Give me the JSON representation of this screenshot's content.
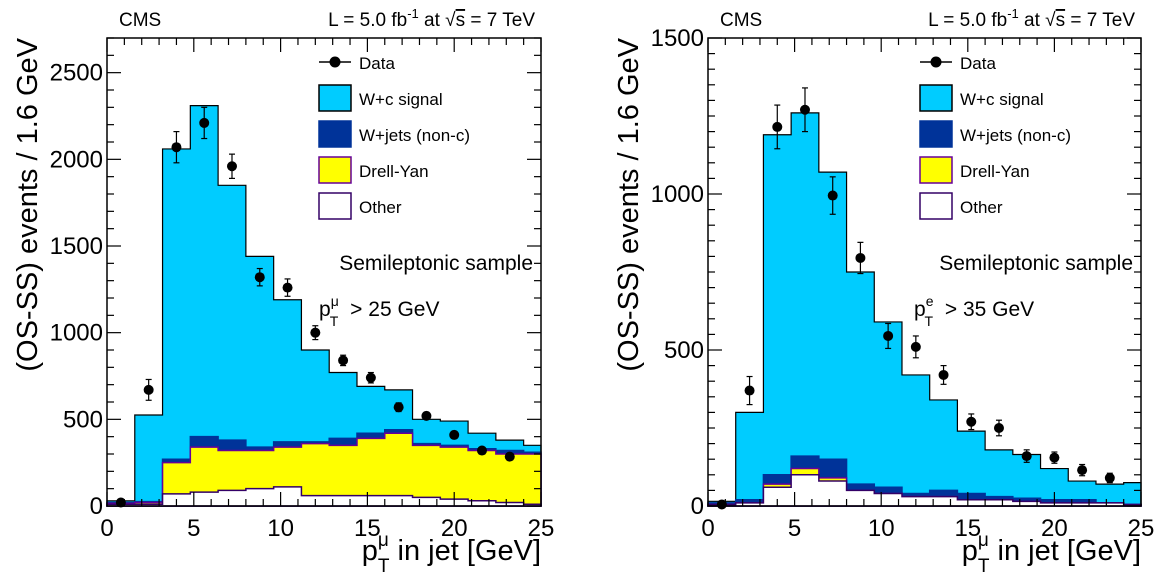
{
  "colors": {
    "signal": "#00ccff",
    "wjets": "#003399",
    "dy": "#ffff00",
    "other": "#ffffff",
    "other_edge": "#330066",
    "data": "#000000"
  },
  "chart_data": [
    {
      "type": "bar",
      "histtype": "stacked-step",
      "panel": "left",
      "experiment": "CMS",
      "lumi_label": "L = 5.0 fb",
      "lumi_exp": "-1",
      "lumi_sqrt": "s",
      "lumi_energy": "= 7 TeV",
      "xlabel_main": "p",
      "xlabel_sup": "μ",
      "xlabel_sub": "T",
      "xlabel_rest": " in jet [GeV]",
      "ylabel": "(OS-SS) events / 1.6 GeV",
      "annotation": "Semileptonic sample",
      "cut_p": "p",
      "cut_sup": "μ",
      "cut_sub": "T",
      "cut_rest": "> 25 GeV",
      "xlim": [
        0,
        25
      ],
      "ylim": [
        0,
        2700
      ],
      "xticks": [
        0,
        5,
        10,
        15,
        20,
        25
      ],
      "yticks": [
        0,
        500,
        1000,
        1500,
        2000,
        2500
      ],
      "bin_edges": [
        0,
        1.6,
        3.2,
        4.8,
        6.4,
        8.0,
        9.6,
        11.2,
        12.8,
        14.4,
        16.0,
        17.6,
        19.2,
        20.8,
        22.4,
        24.0,
        25.0
      ],
      "series": [
        {
          "name": "Other",
          "key": "other",
          "values": [
            10,
            10,
            70,
            80,
            90,
            100,
            110,
            60,
            60,
            60,
            60,
            50,
            40,
            30,
            20,
            10
          ]
        },
        {
          "name": "Drell-Yan",
          "key": "dy",
          "values": [
            5,
            10,
            180,
            260,
            230,
            220,
            230,
            300,
            290,
            330,
            360,
            300,
            300,
            290,
            280,
            290
          ]
        },
        {
          "name": "W+jets (non-c)",
          "key": "wjets",
          "values": [
            5,
            5,
            20,
            60,
            60,
            20,
            30,
            10,
            40,
            30,
            20,
            10,
            10,
            10,
            20,
            10
          ]
        },
        {
          "name": "W+c signal",
          "key": "signal",
          "values": [
            10,
            500,
            1790,
            1910,
            1470,
            1100,
            820,
            530,
            380,
            270,
            230,
            140,
            140,
            90,
            60,
            40
          ]
        }
      ],
      "data": {
        "name": "Data",
        "x": [
          0.8,
          2.4,
          4.0,
          5.6,
          7.2,
          8.8,
          10.4,
          12.0,
          13.6,
          15.2,
          16.8,
          18.4,
          20.0,
          21.6,
          23.2
        ],
        "y": [
          20,
          670,
          2070,
          2210,
          1960,
          1320,
          1260,
          1000,
          840,
          740,
          570,
          520,
          410,
          320,
          285
        ],
        "err": [
          20,
          60,
          90,
          90,
          70,
          50,
          50,
          40,
          30,
          30,
          25,
          20,
          20,
          18,
          15
        ]
      },
      "legend_loc": "top-right"
    },
    {
      "type": "bar",
      "histtype": "stacked-step",
      "panel": "right",
      "experiment": "CMS",
      "lumi_label": "L = 5.0 fb",
      "lumi_exp": "-1",
      "lumi_sqrt": "s",
      "lumi_energy": "= 7 TeV",
      "xlabel_main": "p",
      "xlabel_sup": "μ",
      "xlabel_sub": "T",
      "xlabel_rest": " in jet [GeV]",
      "ylabel": "(OS-SS) events / 1.6 GeV",
      "annotation": "Semileptonic sample",
      "cut_p": "p",
      "cut_sup": "e",
      "cut_sub": "T",
      "cut_rest": "> 35 GeV",
      "xlim": [
        0,
        25
      ],
      "ylim": [
        0,
        1500
      ],
      "xticks": [
        0,
        5,
        10,
        15,
        20,
        25
      ],
      "yticks": [
        0,
        500,
        1000,
        1500
      ],
      "bin_edges": [
        0,
        1.6,
        3.2,
        4.8,
        6.4,
        8.0,
        9.6,
        11.2,
        12.8,
        14.4,
        16.0,
        17.6,
        19.2,
        20.8,
        22.4,
        24.0,
        25.0
      ],
      "series": [
        {
          "name": "Other",
          "key": "other",
          "values": [
            5,
            10,
            60,
            100,
            80,
            50,
            40,
            30,
            30,
            20,
            20,
            15,
            10,
            10,
            10,
            5
          ]
        },
        {
          "name": "Drell-Yan",
          "key": "dy",
          "values": [
            0,
            0,
            10,
            20,
            10,
            0,
            0,
            0,
            0,
            0,
            0,
            0,
            0,
            0,
            0,
            0
          ]
        },
        {
          "name": "W+jets (non-c)",
          "key": "wjets",
          "values": [
            5,
            10,
            30,
            40,
            60,
            20,
            20,
            10,
            20,
            20,
            10,
            10,
            10,
            10,
            0,
            0
          ]
        },
        {
          "name": "W+c signal",
          "key": "signal",
          "values": [
            5,
            280,
            1090,
            1100,
            920,
            680,
            530,
            380,
            290,
            200,
            150,
            140,
            100,
            60,
            60,
            70
          ]
        }
      ],
      "data": {
        "name": "Data",
        "x": [
          0.8,
          2.4,
          4.0,
          5.6,
          7.2,
          8.8,
          10.4,
          12.0,
          13.6,
          15.2,
          16.8,
          18.4,
          20.0,
          21.6,
          23.2
        ],
        "y": [
          5,
          370,
          1215,
          1270,
          995,
          795,
          545,
          510,
          420,
          270,
          250,
          160,
          155,
          115,
          90
        ],
        "err": [
          5,
          45,
          70,
          70,
          60,
          50,
          40,
          35,
          30,
          25,
          25,
          20,
          18,
          18,
          15
        ]
      },
      "legend_loc": "top-right"
    }
  ]
}
